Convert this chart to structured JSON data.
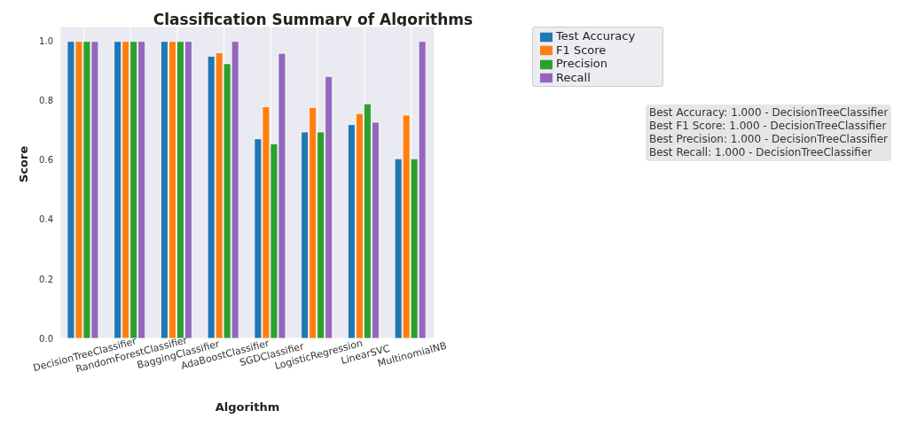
{
  "chart_data": {
    "type": "bar",
    "title": "Classification Summary of Algorithms",
    "xlabel": "Algorithm",
    "ylabel": "Score",
    "categories": [
      "DecisionTreeClassifier",
      "RandomForestClassifier",
      "BaggingClassifier",
      "AdaBoostClassifier",
      "SGDClassifier",
      "LogisticRegression",
      "LinearSVC",
      "MultinomialNB"
    ],
    "series": [
      {
        "name": "Test Accuracy",
        "color": "#1f77b4",
        "values": [
          1.0,
          1.0,
          1.0,
          0.95,
          0.672,
          0.695,
          0.72,
          0.605
        ]
      },
      {
        "name": "F1 Score",
        "color": "#ff7f0e",
        "values": [
          1.0,
          1.0,
          1.0,
          0.962,
          0.78,
          0.778,
          0.757,
          0.752
        ]
      },
      {
        "name": "Precision",
        "color": "#2ca02c",
        "values": [
          1.0,
          1.0,
          1.0,
          0.925,
          0.655,
          0.695,
          0.79,
          0.605
        ]
      },
      {
        "name": "Recall",
        "color": "#9467bd",
        "values": [
          1.0,
          1.0,
          1.0,
          1.0,
          0.96,
          0.882,
          0.728,
          1.0
        ]
      }
    ],
    "ylim": [
      0,
      1.05
    ],
    "yticks": [
      {
        "value": 0,
        "label": "0.0"
      },
      {
        "value": 0.2,
        "label": "0.2"
      },
      {
        "value": 0.4,
        "label": "0.4"
      },
      {
        "value": 0.6,
        "label": "0.6"
      },
      {
        "value": 0.8,
        "label": "0.8"
      },
      {
        "value": 1.0,
        "label": "1.0"
      }
    ],
    "grid": true,
    "legend": "top right",
    "annotations": [
      "Best Accuracy: 1.000 - DecisionTreeClassifier",
      "Best F1 Score: 1.000 - DecisionTreeClassifier",
      "Best Precision: 1.000 - DecisionTreeClassifier",
      "Best Recall: 1.000 - DecisionTreeClassifier"
    ]
  }
}
